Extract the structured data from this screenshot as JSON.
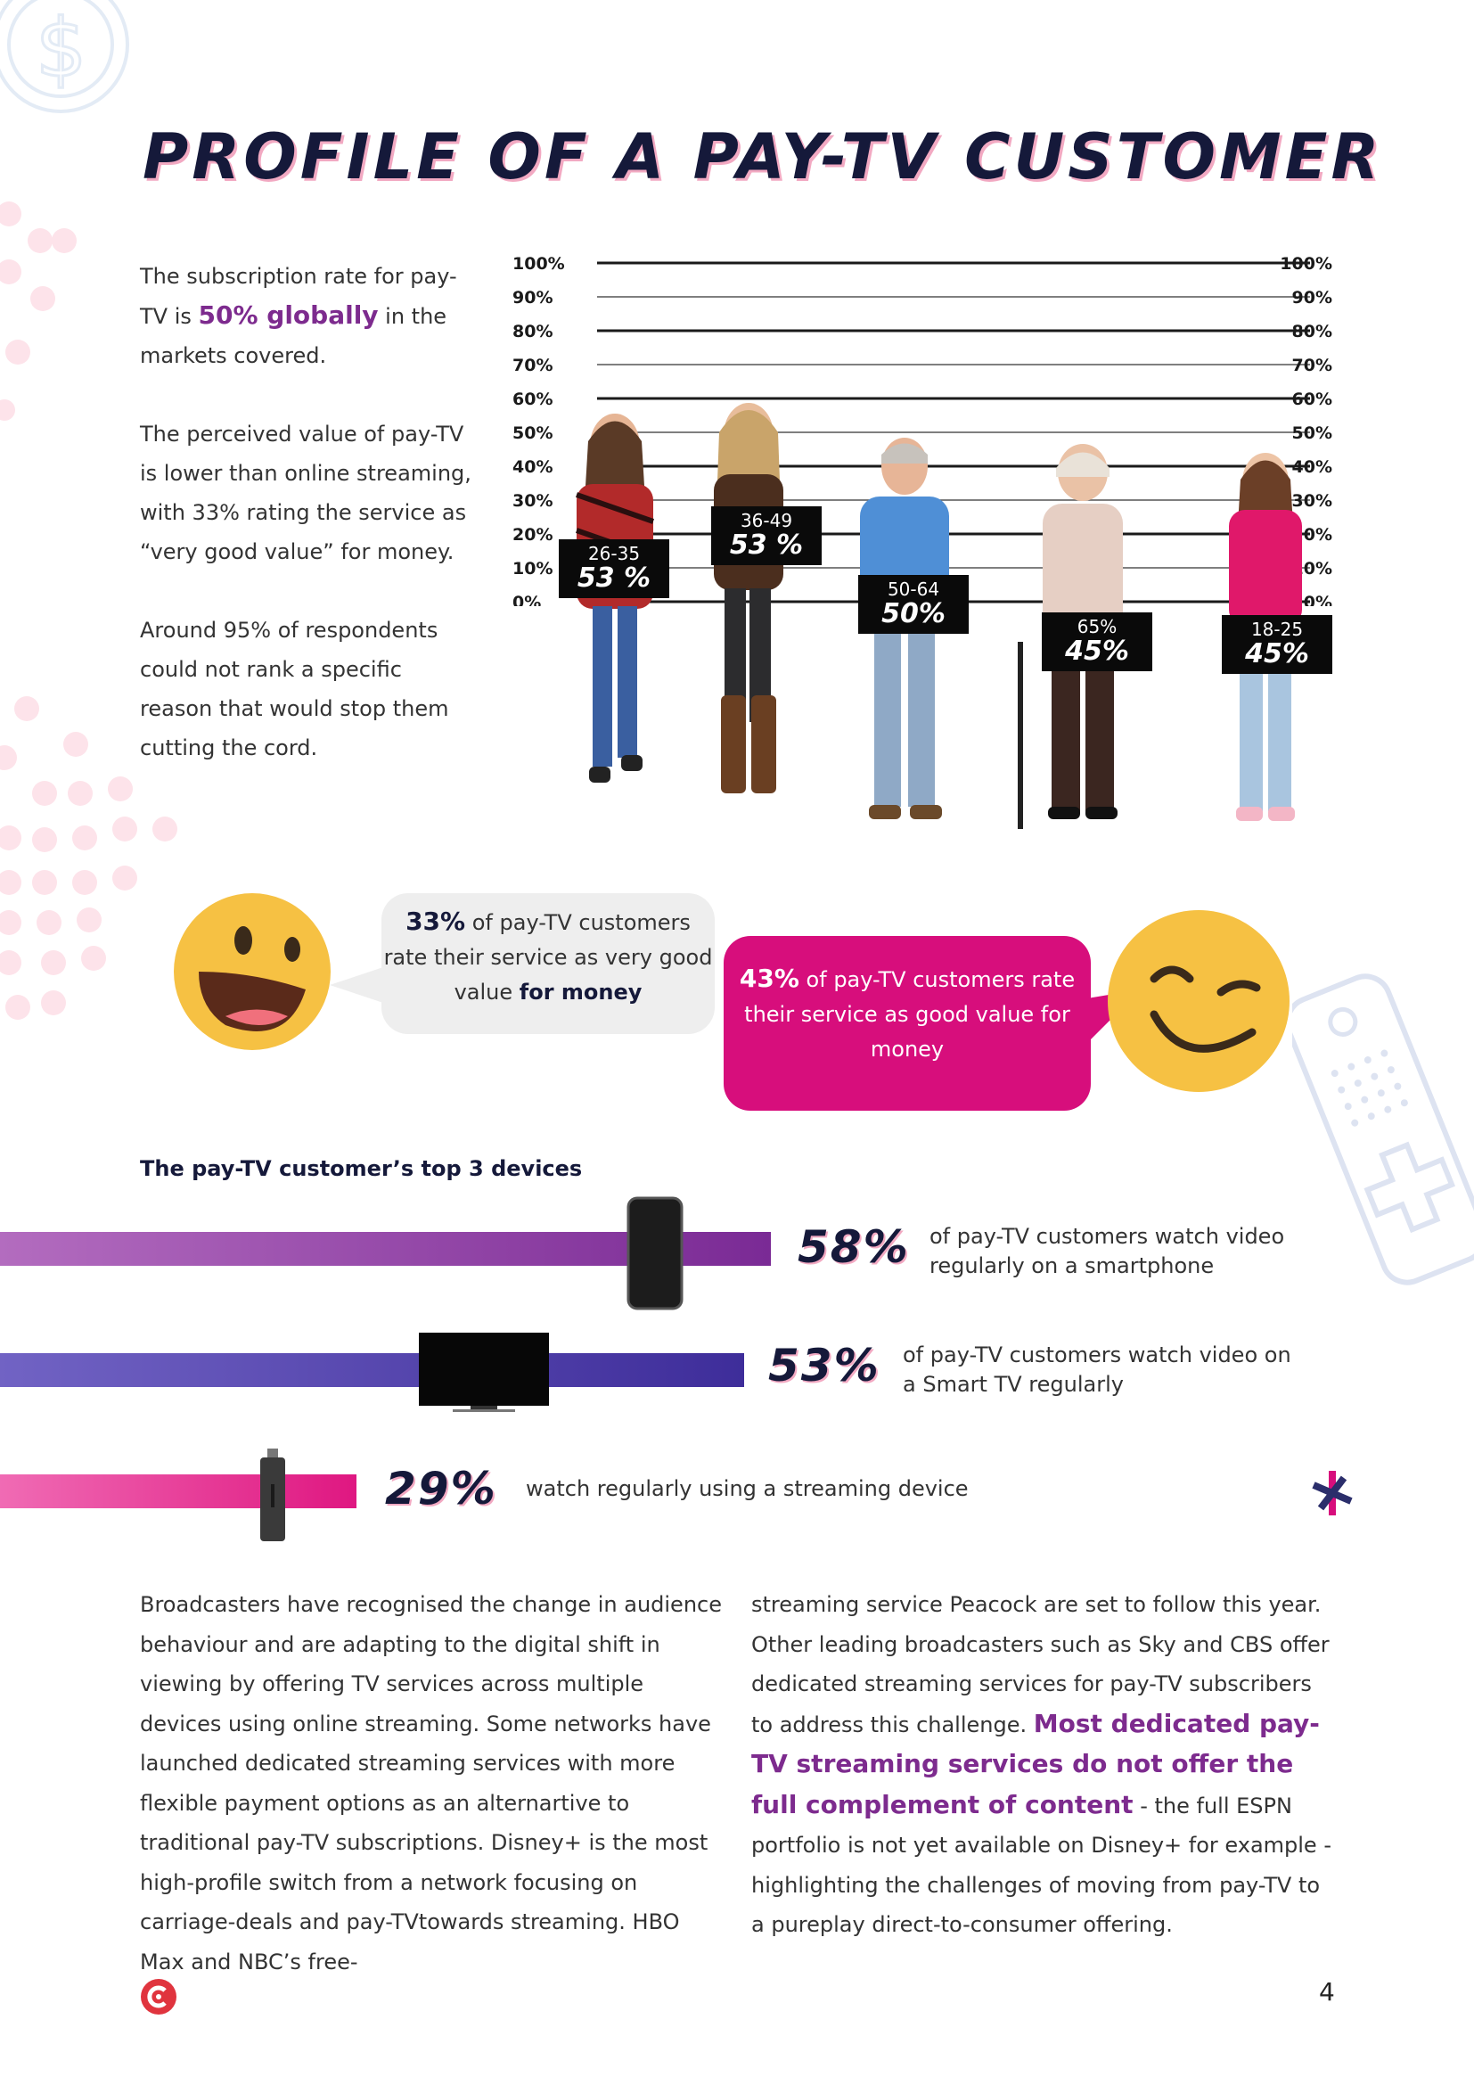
{
  "title": "PROFILE OF A PAY-TV CUSTOMER",
  "intro": {
    "p1_a": "The subscription rate for pay-TV is ",
    "p1_highlight": "50% globally",
    "p1_b": " in the markets covered.",
    "p2": "The perceived value of pay-TV is lower than online streaming, with 33% rating the service as “very good value” for money.",
    "p3": "Around 95% of respondents could not rank a specific reason that would stop them cutting the cord."
  },
  "chart_data": {
    "type": "bar",
    "categories": [
      "26-35",
      "36-49",
      "50-64",
      "65%",
      "18-25"
    ],
    "values": [
      53,
      53,
      50,
      45,
      45
    ],
    "value_labels": [
      "53 %",
      "53 %",
      "50%",
      "45%",
      "45%"
    ],
    "ylim": [
      0,
      100
    ],
    "y_ticks": [
      "0%",
      "10%",
      "20%",
      "30%",
      "40%",
      "50%",
      "60%",
      "70%",
      "80%",
      "90%",
      "100%"
    ],
    "grid": true
  },
  "bubbles": {
    "grey_pct": "33%",
    "grey_a": " of pay-TV customers rate their service as very good value ",
    "grey_bold": "for money",
    "pink_pct": "43%",
    "pink_text": " of pay-TV customers rate their service as good value for money"
  },
  "devices": {
    "heading": "The pay-TV customer’s top 3 devices",
    "items": [
      {
        "pct": "58%",
        "text": "of pay-TV customers watch video regularly on a smartphone",
        "value": 58
      },
      {
        "pct": "53%",
        "text": "of pay-TV customers watch video on a Smart TV regularly",
        "value": 53
      },
      {
        "pct": "29%",
        "text": "watch regularly using a streaming device",
        "value": 29
      }
    ]
  },
  "body": {
    "left": "Broadcasters have recognised the change in audience behaviour and are adapting to the digital shift in viewing by offering TV services across multiple devices using online streaming.  Some networks have launched dedicated streaming services with more flexible payment options as an alternartive to traditional pay-TV subscriptions. Disney+ is the most high-profile switch from a network focusing on carriage-deals and pay-TVtowards streaming. HBO Max and NBC’s free-",
    "right_a": "streaming service Peacock are set to follow this year. Other leading broadcasters such as Sky and CBS offer dedicated streaming services for pay-TV subscribers to address this challenge. ",
    "right_highlight": "Most dedicated pay-TV streaming services do not offer the full complement of content",
    "right_b": " - the full ESPN portfolio is not yet available on Disney+ for example - highlighting the challenges of moving from pay-TV to a pureplay direct-to-consumer offering."
  },
  "page_number": "4",
  "colors": {
    "navy": "#15193a",
    "purple": "#7d2b8e",
    "pink": "#d70e7c",
    "violet": "#4a3aa5"
  }
}
